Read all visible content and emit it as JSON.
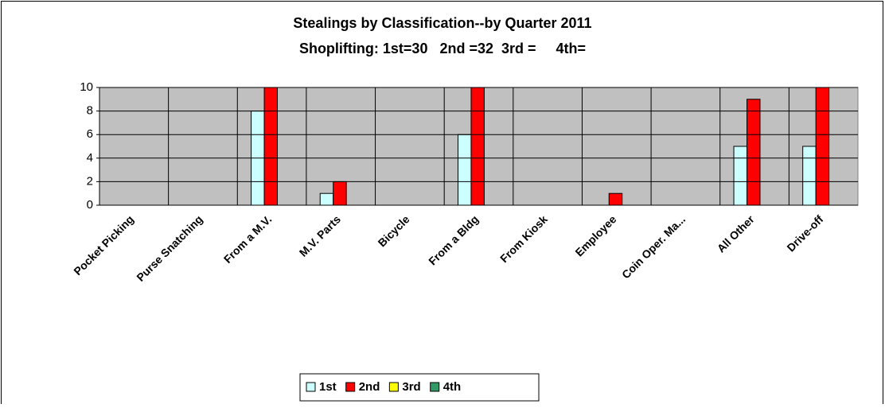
{
  "chart_data": {
    "type": "bar",
    "title": "Stealings by Classification--by Quarter 2011",
    "subtitle": "Shoplifting: 1st=30   2nd =32  3rd =     4th=",
    "categories": [
      "Pocket Picking",
      "Purse Snatching",
      "From a M.V.",
      "M.V. Parts",
      "Bicycle",
      "From a Bldg",
      "From Kiosk",
      "Employee",
      "Coin Oper. Ma...",
      "All Other",
      "Drive-off"
    ],
    "series": [
      {
        "name": "1st",
        "color": "#ccffff",
        "values": [
          0,
          0,
          8,
          1,
          0,
          6,
          0,
          0,
          0,
          5,
          5
        ]
      },
      {
        "name": "2nd",
        "color": "#ff0000",
        "values": [
          0,
          0,
          11,
          2,
          0,
          11,
          0,
          1,
          0,
          9,
          11
        ]
      },
      {
        "name": "3rd",
        "color": "#ffff00",
        "values": [
          0,
          0,
          0,
          0,
          0,
          0,
          0,
          0,
          0,
          0,
          0
        ]
      },
      {
        "name": "4th",
        "color": "#339966",
        "values": [
          0,
          0,
          0,
          0,
          0,
          0,
          0,
          0,
          0,
          0,
          0
        ]
      }
    ],
    "ylim": [
      0,
      10
    ],
    "yticks": [
      0,
      2,
      4,
      6,
      8,
      10
    ],
    "grid": true,
    "legend": "bottom"
  }
}
